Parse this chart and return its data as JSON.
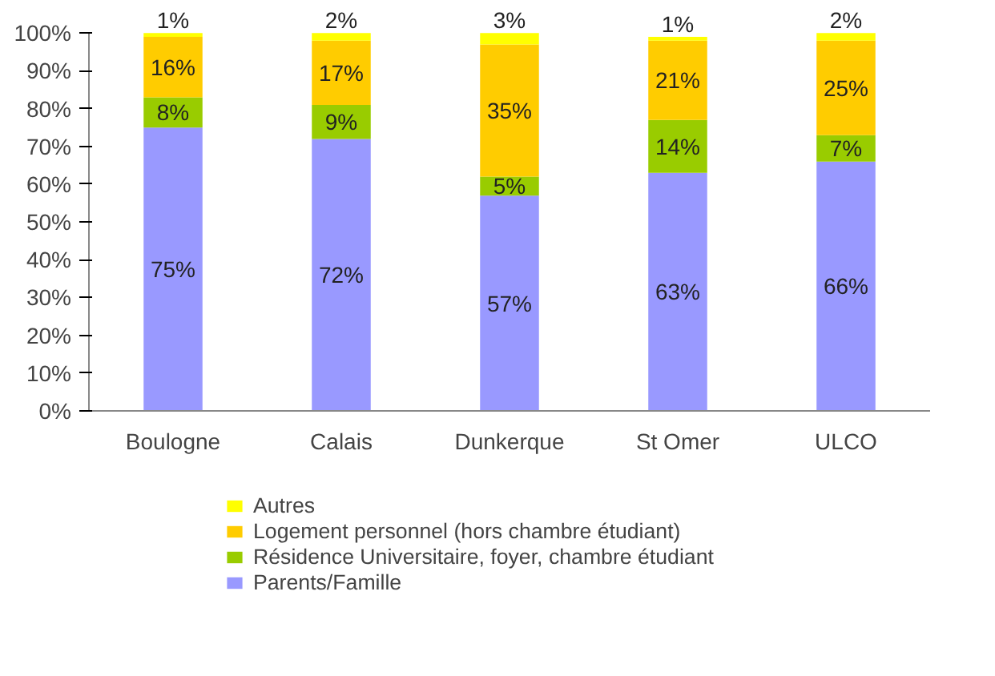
{
  "chart_data": {
    "type": "bar",
    "stacked": true,
    "categories": [
      "Boulogne",
      "Calais",
      "Dunkerque",
      "St Omer",
      "ULCO"
    ],
    "series": [
      {
        "name": "Parents/Famille",
        "color": "#9999ff",
        "values": [
          75,
          72,
          57,
          63,
          66
        ],
        "value_labels": [
          "75%",
          "72%",
          "57%",
          "63%",
          "66%"
        ]
      },
      {
        "name": "Résidence Universitaire, foyer, chambre étudiant",
        "color": "#99cc00",
        "values": [
          8,
          9,
          5,
          14,
          7
        ],
        "value_labels": [
          "8%",
          "9%",
          "5%",
          "14%",
          "7%"
        ]
      },
      {
        "name": "Logement personnel (hors chambre étudiant)",
        "color": "#ffcc00",
        "values": [
          16,
          17,
          35,
          21,
          25
        ],
        "value_labels": [
          "16%",
          "17%",
          "35%",
          "21%",
          "25%"
        ]
      },
      {
        "name": "Autres",
        "color": "#ffff00",
        "values": [
          1,
          2,
          3,
          1,
          2
        ],
        "value_labels": [
          "1%",
          "2%",
          "3%",
          "1%",
          "2%"
        ]
      }
    ],
    "ylim": [
      0,
      100
    ],
    "yticks": [
      {
        "value": 0,
        "label": "0%"
      },
      {
        "value": 10,
        "label": "10%"
      },
      {
        "value": 20,
        "label": "20%"
      },
      {
        "value": 30,
        "label": "30%"
      },
      {
        "value": 40,
        "label": "40%"
      },
      {
        "value": 50,
        "label": "50%"
      },
      {
        "value": 60,
        "label": "60%"
      },
      {
        "value": 70,
        "label": "70%"
      },
      {
        "value": 80,
        "label": "80%"
      },
      {
        "value": 90,
        "label": "90%"
      },
      {
        "value": 100,
        "label": "100%"
      }
    ],
    "grid": false,
    "legend": "bottom"
  }
}
